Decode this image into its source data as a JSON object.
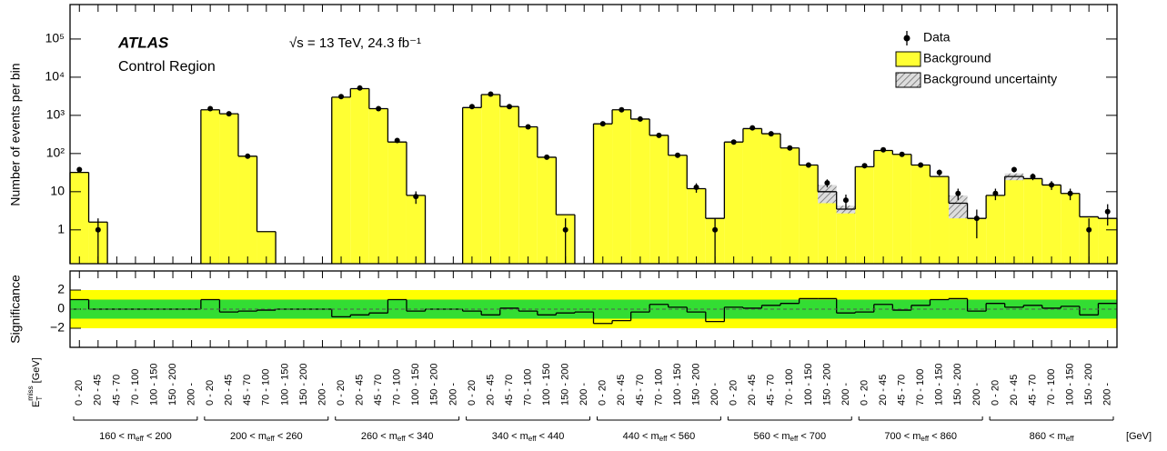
{
  "chart_data": {
    "type": "histogram",
    "experiment": "ATLAS",
    "region": "Control Region",
    "energy": "√s = 13 TeV, 24.3 fb⁻¹",
    "ylabel": "Number of events per bin",
    "sig_label": "Significance",
    "x_unit": "[GeV]",
    "met_label": {
      "main": "E",
      "sub": "T",
      "sup": "miss",
      "unit": "[GeV]"
    },
    "met_bins": [
      "0 - 20",
      "20 - 45",
      "45 - 70",
      "70 - 100",
      "100 - 150",
      "150 - 200",
      "200 -"
    ],
    "meff_groups": [
      {
        "lo": "160 < m",
        "sub": "eff",
        "hi": " < 200"
      },
      {
        "lo": "200 < m",
        "sub": "eff",
        "hi": " < 260"
      },
      {
        "lo": "260 < m",
        "sub": "eff",
        "hi": " < 340"
      },
      {
        "lo": "340 < m",
        "sub": "eff",
        "hi": " < 440"
      },
      {
        "lo": "440 < m",
        "sub": "eff",
        "hi": " < 560"
      },
      {
        "lo": "560 < m",
        "sub": "eff",
        "hi": " < 700"
      },
      {
        "lo": "700 < m",
        "sub": "eff",
        "hi": " < 860"
      },
      {
        "lo": "860 < m",
        "sub": "eff",
        "hi": ""
      }
    ],
    "log_y": true,
    "ylim": [
      0.13,
      800000
    ],
    "yticks": [
      1,
      10,
      {
        "value": 100,
        "label": "10²"
      },
      {
        "value": 1000,
        "label": "10³"
      },
      {
        "value": 10000,
        "label": "10⁴"
      },
      {
        "value": 100000,
        "label": "10⁵"
      }
    ],
    "sig_ylim": [
      -4,
      4
    ],
    "sig_yticks": [
      {
        "value": -2,
        "label": "−2"
      },
      0,
      2
    ],
    "sig_bands": [
      {
        "value": 2,
        "color": "#ffff00"
      },
      {
        "value": 1,
        "color": "#33dd33"
      }
    ],
    "legend_position": "upper right",
    "background": {
      "name": "Background",
      "color": "#ffff33",
      "values": [
        32,
        1.6,
        null,
        null,
        null,
        null,
        null,
        1400,
        1100,
        85,
        0.9,
        null,
        null,
        null,
        3000,
        5000,
        1500,
        200,
        8,
        null,
        null,
        1600,
        3500,
        1700,
        500,
        80,
        2.5,
        null,
        600,
        1400,
        800,
        300,
        90,
        12,
        2,
        200,
        450,
        330,
        140,
        50,
        10,
        3.5,
        45,
        120,
        95,
        50,
        25,
        5,
        2,
        8,
        25,
        22,
        15,
        9,
        2.2,
        2
      ]
    },
    "uncertainty": {
      "name": "Background uncertainty",
      "values": [
        null,
        null,
        null,
        null,
        null,
        null,
        null,
        null,
        null,
        null,
        null,
        null,
        null,
        null,
        null,
        null,
        null,
        null,
        null,
        null,
        null,
        null,
        null,
        null,
        null,
        null,
        null,
        null,
        null,
        null,
        null,
        null,
        null,
        null,
        null,
        null,
        null,
        null,
        null,
        null,
        5,
        0.8,
        null,
        null,
        null,
        null,
        null,
        3,
        null,
        null,
        5,
        null,
        null,
        null,
        null,
        null
      ]
    },
    "data": {
      "name": "Data",
      "color": "#000000",
      "values": [
        38,
        1,
        null,
        null,
        null,
        null,
        null,
        1500,
        1100,
        85,
        null,
        null,
        null,
        null,
        3100,
        5200,
        1500,
        220,
        7.5,
        null,
        null,
        1700,
        3600,
        1700,
        500,
        80,
        1,
        null,
        600,
        1400,
        800,
        300,
        90,
        13,
        1,
        200,
        470,
        330,
        140,
        50,
        17,
        6,
        48,
        125,
        95,
        50,
        32,
        9,
        2,
        9,
        38,
        25,
        15,
        9,
        1,
        3
      ],
      "errors": [
        6,
        1,
        null,
        null,
        null,
        null,
        null,
        39,
        33,
        9,
        null,
        null,
        null,
        null,
        56,
        72,
        39,
        15,
        2.7,
        null,
        null,
        41,
        60,
        41,
        22,
        9,
        1,
        null,
        24,
        37,
        28,
        17,
        9,
        3.6,
        1,
        14,
        22,
        18,
        12,
        7,
        4,
        2.4,
        7,
        11,
        10,
        7,
        5.7,
        3,
        1.4,
        3,
        6,
        5,
        3.9,
        3,
        1,
        1.7
      ]
    },
    "significance": [
      1.0,
      0,
      0,
      0,
      0,
      0,
      0,
      1.0,
      -0.3,
      -0.2,
      -0.1,
      0,
      0,
      0,
      -0.8,
      -0.6,
      -0.4,
      1.0,
      -0.2,
      0,
      0,
      -0.2,
      -0.6,
      0.1,
      -0.2,
      -0.6,
      -0.4,
      -0.3,
      -1.5,
      -1.2,
      -0.3,
      0.5,
      0.2,
      -0.3,
      -1.3,
      0.2,
      0.1,
      0.4,
      0.6,
      1.1,
      1.1,
      -0.4,
      -0.3,
      0.5,
      -0.1,
      0.4,
      1.0,
      1.1,
      -0.2,
      0.6,
      0.2,
      0.4,
      0.1,
      0.3,
      -0.6,
      0.6
    ]
  }
}
